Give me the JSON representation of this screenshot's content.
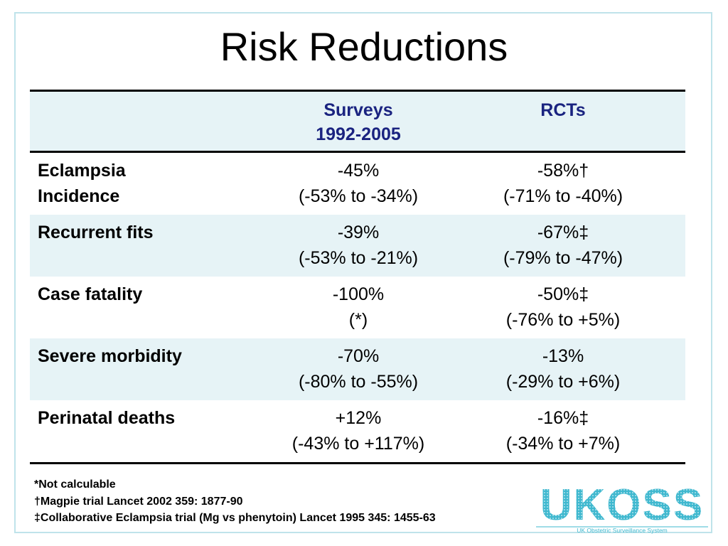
{
  "slide": {
    "title": "Risk Reductions"
  },
  "table": {
    "headers": [
      {
        "line1": "",
        "line2": ""
      },
      {
        "line1": "Surveys",
        "line2": "1992-2005"
      },
      {
        "line1": "RCTs",
        "line2": ""
      }
    ],
    "rows": [
      {
        "label1": "Eclampsia",
        "label2": "Incidence",
        "surveys_value": "-45%",
        "surveys_ci": "(-53% to -34%)",
        "rcts_value": "-58%†",
        "rcts_ci": "(-71% to -40%)"
      },
      {
        "label1": "Recurrent fits",
        "label2": "",
        "surveys_value": "-39%",
        "surveys_ci": "(-53% to -21%)",
        "rcts_value": "-67%‡",
        "rcts_ci": "(-79% to -47%)"
      },
      {
        "label1": "Case fatality",
        "label2": "",
        "surveys_value": "-100%",
        "surveys_ci": "(*)",
        "rcts_value": "-50%‡",
        "rcts_ci": "(-76% to +5%)"
      },
      {
        "label1": "Severe morbidity",
        "label2": "",
        "surveys_value": "-70%",
        "surveys_ci": "(-80% to -55%)",
        "rcts_value": "-13%",
        "rcts_ci": "(-29% to +6%)"
      },
      {
        "label1": "Perinatal deaths",
        "label2": "",
        "surveys_value": "+12%",
        "surveys_ci": "(-43% to +117%)",
        "rcts_value": "-16%‡",
        "rcts_ci": "(-34% to +7%)"
      }
    ]
  },
  "footnotes": [
    "*Not calculable",
    "†Magpie trial Lancet 2002 359: 1877-90",
    "‡Collaborative Eclampsia trial (Mg vs phenytoin) Lancet 1995 345: 1455-63"
  ],
  "logo": {
    "text": "UKOSS",
    "tagline": "UK Obstetric Surveillance System",
    "color": "#3fb8cf"
  }
}
